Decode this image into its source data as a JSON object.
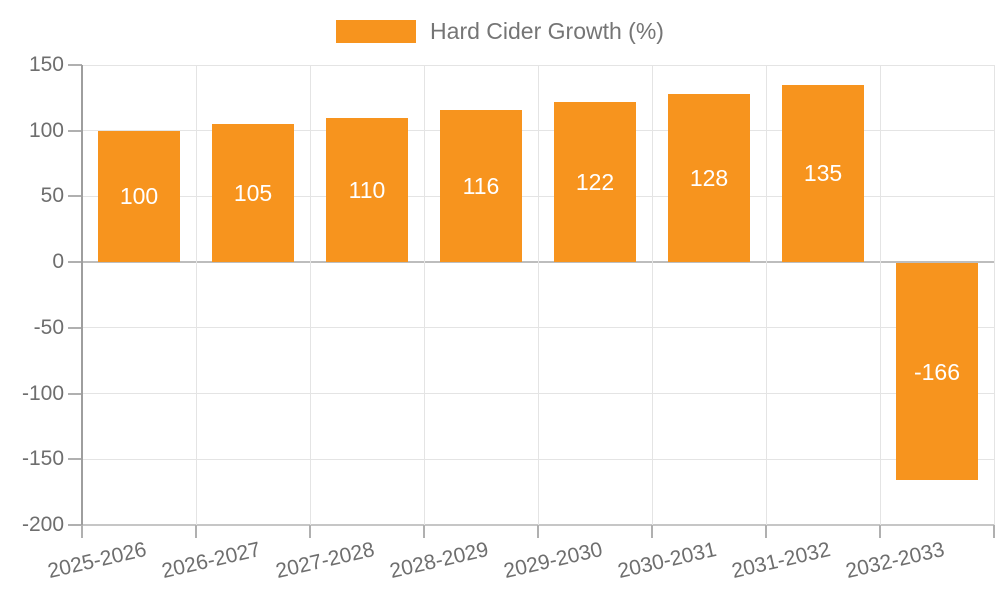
{
  "chart_data": {
    "type": "bar",
    "title": "",
    "legend": {
      "label": "Hard Cider Growth (%)",
      "position": "top"
    },
    "categories": [
      "2025-2026",
      "2026-2027",
      "2027-2028",
      "2028-2029",
      "2029-2030",
      "2030-2031",
      "2031-2032",
      "2032-2033"
    ],
    "series": [
      {
        "name": "Hard Cider Growth (%)",
        "color": "#f7941e",
        "values": [
          100,
          105,
          110,
          116,
          122,
          128,
          135,
          -166
        ]
      }
    ],
    "xlabel": "",
    "ylabel": "",
    "ylim": [
      -200,
      150
    ],
    "ytick_step": 50,
    "yticks": [
      150,
      100,
      50,
      0,
      -50,
      -100,
      -150,
      -200
    ],
    "grid": "both",
    "x_label_rotation_deg": -13,
    "value_labels": {
      "show": true,
      "color": "#ffffff",
      "position": "inside-center"
    },
    "style": {
      "bar_color": "#f7941e",
      "background": "#ffffff",
      "gridline_color": "#e4e4e4",
      "zero_line_color": "#bdbdbd",
      "bottom_line_color": "#c6c6c6",
      "y_axis_line_color": "#9e9e9e",
      "tick_color": "#b0b0b0",
      "axis_text_color": "#6e6e6e",
      "legend_text_color": "#757575"
    }
  }
}
